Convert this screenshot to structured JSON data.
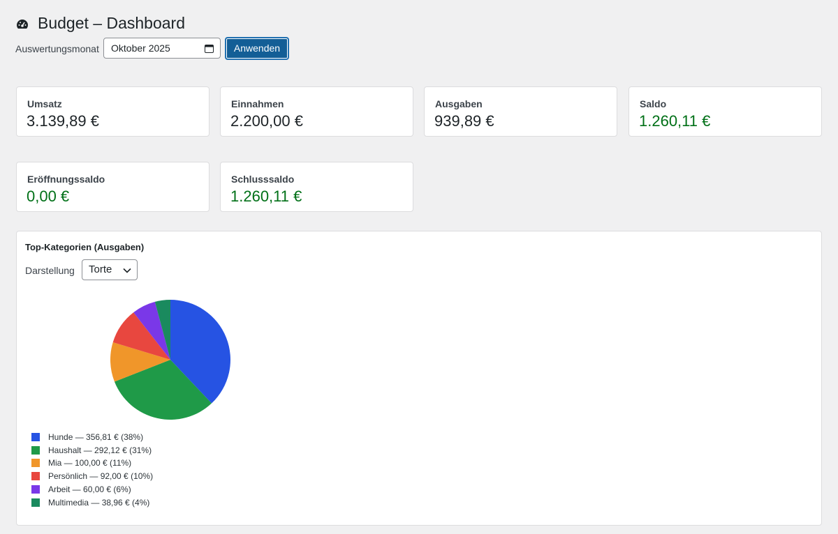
{
  "header": {
    "title": "Budget – Dashboard"
  },
  "form": {
    "label": "Auswertungsmonat",
    "date_value": "Oktober 2025",
    "button": "Anwenden"
  },
  "cards": [
    {
      "label": "Umsatz",
      "value": "3.139,89 €",
      "color": "#1d2327"
    },
    {
      "label": "Einnahmen",
      "value": "2.200,00 €",
      "color": "#1d2327"
    },
    {
      "label": "Ausgaben",
      "value": "939,89 €",
      "color": "#1d2327"
    },
    {
      "label": "Saldo",
      "value": "1.260,11 €",
      "color": "#007017"
    },
    {
      "label": "Eröffnungssaldo",
      "value": "0,00 €",
      "color": "#007017"
    },
    {
      "label": "Schlusssaldo",
      "value": "1.260,11 €",
      "color": "#007017"
    }
  ],
  "panel": {
    "title": "Top-Kategorien (Ausgaben)",
    "select_label": "Darstellung",
    "select_value": "Torte"
  },
  "chart_data": {
    "type": "pie",
    "categories": [
      "Hunde",
      "Haushalt",
      "Mia",
      "Persönlich",
      "Arbeit",
      "Multimedia"
    ],
    "values": [
      356.81,
      292.12,
      100.0,
      92.0,
      60.0,
      38.96
    ],
    "legend_labels": [
      "Hunde — 356,81 € (38%)",
      "Haushalt — 292,12 € (31%)",
      "Mia — 100,00 € (11%)",
      "Persönlich — 92,00 € (10%)",
      "Arbeit — 60,00 € (6%)",
      "Multimedia — 38,96 € (4%)"
    ],
    "colors": [
      "#2653e3",
      "#1f9a48",
      "#f0962a",
      "#e8473f",
      "#7a38e8",
      "#1a8a5e"
    ]
  }
}
